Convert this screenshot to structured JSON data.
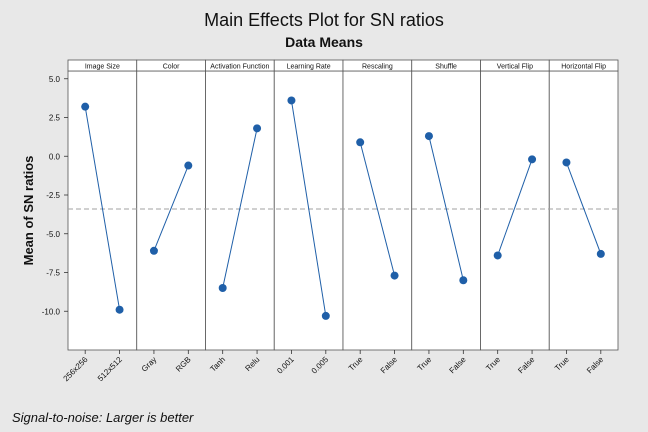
{
  "chart_data": {
    "type": "line",
    "title": "Main Effects Plot for SN ratios",
    "subtitle": "Data Means",
    "ylabel": "Mean of SN ratios",
    "xlabel": "",
    "ylim": [
      -12.5,
      5.5
    ],
    "yticks": [
      5.0,
      2.5,
      0.0,
      -2.5,
      -5.0,
      -7.5,
      -10.0
    ],
    "ytick_labels": [
      "5.0",
      "2.5",
      "0.0",
      "-2.5",
      "-5.0",
      "-7.5",
      "-10.0"
    ],
    "reference_line": -3.4,
    "footnote": "Signal-to-noise: Larger is better",
    "panels": [
      {
        "factor": "Image Size",
        "levels": [
          "256x256",
          "512x512"
        ],
        "values": [
          3.2,
          -9.9
        ]
      },
      {
        "factor": "Color",
        "levels": [
          "Gray",
          "RGB"
        ],
        "values": [
          -6.1,
          -0.6
        ]
      },
      {
        "factor": "Activation Function",
        "levels": [
          "Tanh",
          "Relu"
        ],
        "values": [
          -8.5,
          1.8
        ]
      },
      {
        "factor": "Learning Rate",
        "levels": [
          "0.001",
          "0.005"
        ],
        "values": [
          3.6,
          -10.3
        ]
      },
      {
        "factor": "Rescaling",
        "levels": [
          "True",
          "False"
        ],
        "values": [
          0.9,
          -7.7
        ]
      },
      {
        "factor": "Shuffle",
        "levels": [
          "True",
          "False"
        ],
        "values": [
          1.3,
          -8.0
        ]
      },
      {
        "factor": "Vertical Flip",
        "levels": [
          "True",
          "False"
        ],
        "values": [
          -6.4,
          -0.2
        ]
      },
      {
        "factor": "Horizontal Flip",
        "levels": [
          "True",
          "False"
        ],
        "values": [
          -0.4,
          -6.3
        ]
      }
    ],
    "colors": {
      "series": "#1f5fa8",
      "marker": "#1f5fa8",
      "reference": "#a0a0a0",
      "panel_bg": "#ffffff",
      "header_bg": "#ffffff"
    }
  }
}
